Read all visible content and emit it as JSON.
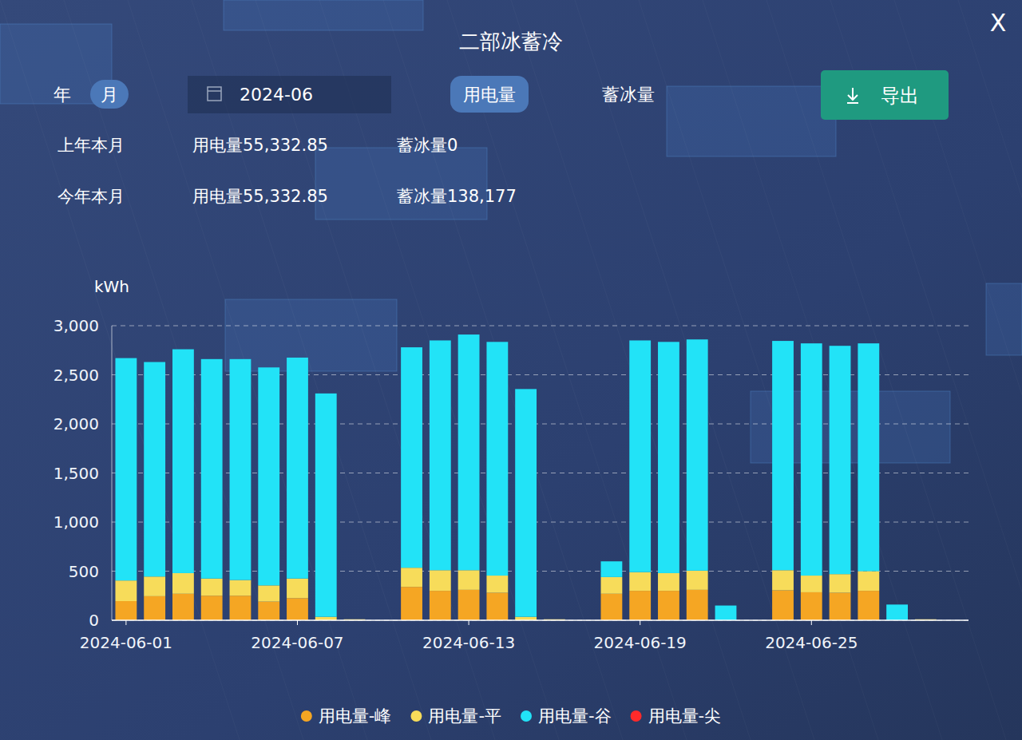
{
  "panel": {
    "close": "X",
    "period_tabs": [
      {
        "label": "年",
        "active": false
      },
      {
        "label": "月",
        "active": true
      }
    ],
    "date": "2024-06",
    "metric_tabs": [
      {
        "label": "用电量",
        "active": true
      },
      {
        "label": "蓄冰量",
        "active": false
      }
    ],
    "export": "导出",
    "summary": [
      {
        "label": "上年本月",
        "power": "用电量55,332.85",
        "ice": "蓄冰量0"
      },
      {
        "label": "今年本月",
        "power": "用电量55,332.85",
        "ice": "蓄冰量138,177"
      }
    ]
  },
  "chart_data": {
    "type": "bar",
    "title": "二部冰蓄冷",
    "y_label": "kWh",
    "categories": [
      "2024-06-01",
      null,
      null,
      null,
      null,
      null,
      "2024-06-07",
      null,
      null,
      null,
      null,
      null,
      "2024-06-13",
      null,
      null,
      null,
      null,
      null,
      "2024-06-19",
      null,
      null,
      null,
      null,
      null,
      "2024-06-25",
      null,
      null,
      null,
      null,
      null
    ],
    "series": [
      {
        "name": "用电量-峰",
        "color": "#f5a623",
        "values": [
          195,
          245,
          270,
          250,
          250,
          190,
          225,
          0,
          0,
          0,
          340,
          300,
          310,
          280,
          0,
          0,
          0,
          270,
          300,
          300,
          310,
          0,
          0,
          305,
          285,
          280,
          300,
          0,
          0,
          0
        ]
      },
      {
        "name": "用电量-平",
        "color": "#f7dc5a",
        "values": [
          210,
          200,
          210,
          175,
          160,
          165,
          200,
          35,
          10,
          0,
          195,
          210,
          200,
          175,
          35,
          10,
          0,
          170,
          190,
          180,
          195,
          0,
          0,
          205,
          170,
          190,
          200,
          0,
          10,
          0
        ]
      },
      {
        "name": "用电量-谷",
        "color": "#22e3f7",
        "values": [
          2265,
          2185,
          2280,
          2235,
          2250,
          2220,
          2250,
          2275,
          0,
          0,
          2245,
          2340,
          2400,
          2380,
          2320,
          0,
          0,
          160,
          2360,
          2355,
          2355,
          150,
          0,
          2335,
          2365,
          2325,
          2320,
          160,
          0,
          0
        ]
      },
      {
        "name": "用电量-尖",
        "color": "#ff2a2a",
        "values": [
          0,
          0,
          0,
          0,
          0,
          0,
          0,
          0,
          0,
          0,
          0,
          0,
          0,
          0,
          0,
          0,
          0,
          0,
          0,
          0,
          0,
          0,
          0,
          0,
          0,
          0,
          0,
          0,
          0,
          0
        ]
      }
    ],
    "ylim": [
      0,
      3000
    ],
    "yticks": [
      0,
      500,
      {
        "value": 1000,
        "label": "1,000"
      },
      {
        "value": 1500,
        "label": "1,500"
      },
      {
        "value": 2000,
        "label": "2,000"
      },
      {
        "value": 2500,
        "label": "2,500"
      },
      {
        "value": 3000,
        "label": "3,000"
      }
    ],
    "stacked": true,
    "grid": true,
    "legend": "bottom"
  }
}
